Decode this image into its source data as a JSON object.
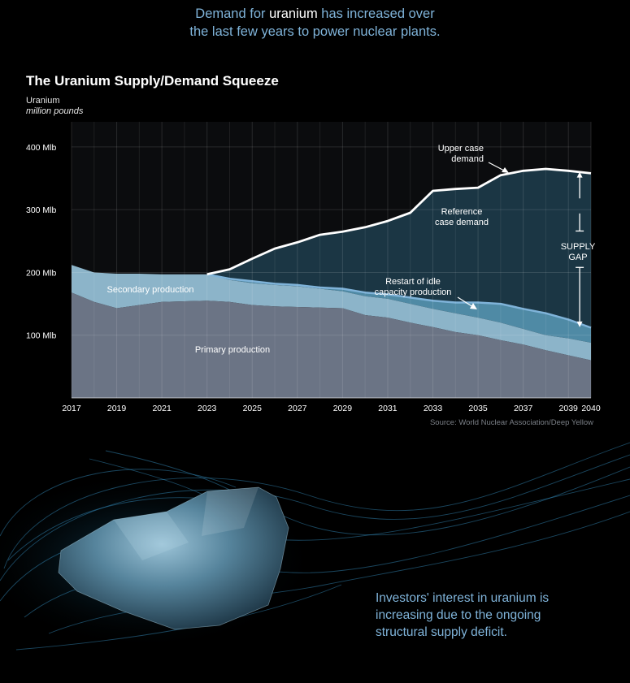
{
  "headline": {
    "part1": "Demand for ",
    "highlight": "uranium",
    "part2": " has increased over",
    "line2": "the last few years to power nuclear plants."
  },
  "colors": {
    "primary": "#6b7485",
    "secondary": "#8cb4c9",
    "restart": "#4f8aa5",
    "gap_fill": "#1f3e4e",
    "upper_line": "#ffffff",
    "reference_line": "#7fb3d9",
    "accent_text": "#7fb3d9"
  },
  "chart_data": {
    "type": "area",
    "title": "The Uranium Supply/Demand Squeeze",
    "ylabel": "Uranium",
    "yunit": "million pounds",
    "source": "Source: World Nuclear Association/Deep Yellow",
    "xlim": [
      2017,
      2040
    ],
    "ylim": [
      0,
      440
    ],
    "grid": true,
    "x_ticks": [
      "2017",
      "2019",
      "2021",
      "2023",
      "2025",
      "2027",
      "2029",
      "2031",
      "2033",
      "2035",
      "2037",
      "2039",
      "2040"
    ],
    "y_ticks": [
      {
        "value": 100,
        "label": "100 Mlb"
      },
      {
        "value": 200,
        "label": "200 Mlb"
      },
      {
        "value": 300,
        "label": "300 Mlb"
      },
      {
        "value": 400,
        "label": "400 Mlb"
      }
    ],
    "series": [
      {
        "key": "primary",
        "name": "Primary production",
        "type": "area",
        "x": [
          2017,
          2018,
          2019,
          2020,
          2021,
          2022,
          2023,
          2024,
          2025,
          2026,
          2027,
          2028,
          2029,
          2030,
          2031,
          2032,
          2033,
          2034,
          2035,
          2036,
          2037,
          2038,
          2039,
          2040
        ],
        "y": [
          168,
          153,
          143,
          148,
          153,
          154,
          155,
          153,
          148,
          146,
          145,
          144,
          143,
          132,
          128,
          120,
          113,
          105,
          100,
          92,
          85,
          76,
          68,
          60
        ]
      },
      {
        "key": "secondary",
        "name": "Secondary production",
        "type": "area",
        "x": [
          2017,
          2018,
          2019,
          2020,
          2021,
          2022,
          2023,
          2024,
          2025,
          2026,
          2027,
          2028,
          2029,
          2030,
          2031,
          2032,
          2033,
          2034,
          2035,
          2036,
          2037,
          2038,
          2039,
          2040
        ],
        "y": [
          212,
          200,
          198,
          198,
          197,
          197,
          197,
          188,
          183,
          180,
          178,
          174,
          170,
          162,
          158,
          150,
          142,
          135,
          128,
          120,
          110,
          100,
          95,
          88
        ]
      },
      {
        "key": "restart",
        "name": "Restart of idle capacity production",
        "type": "area",
        "x": [
          2023,
          2024,
          2025,
          2026,
          2027,
          2028,
          2029,
          2030,
          2031,
          2032,
          2033,
          2034,
          2035,
          2036,
          2037,
          2038,
          2039,
          2040
        ],
        "y": [
          197,
          190,
          186,
          182,
          180,
          176,
          174,
          168,
          165,
          160,
          155,
          152,
          152,
          150,
          142,
          135,
          125,
          112
        ]
      },
      {
        "key": "reference",
        "name": "Reference case demand",
        "type": "line",
        "x": [
          2023,
          2024,
          2025,
          2026,
          2027,
          2028,
          2029,
          2030,
          2031,
          2032,
          2033,
          2034,
          2035,
          2036,
          2037,
          2038,
          2039,
          2040
        ],
        "y": [
          197,
          202,
          205,
          210,
          215,
          222,
          225,
          230,
          233,
          240,
          246,
          252,
          255,
          260,
          270,
          270,
          268,
          265
        ]
      },
      {
        "key": "upper",
        "name": "Upper case demand",
        "type": "line",
        "x": [
          2023,
          2024,
          2025,
          2026,
          2027,
          2028,
          2029,
          2030,
          2031,
          2032,
          2033,
          2034,
          2035,
          2036,
          2037,
          2038,
          2039,
          2040
        ],
        "y": [
          197,
          205,
          222,
          238,
          248,
          260,
          265,
          272,
          282,
          295,
          330,
          333,
          335,
          355,
          362,
          365,
          362,
          358
        ]
      }
    ],
    "annotations": [
      {
        "key": "upper",
        "lines": [
          "Upper case",
          "demand"
        ]
      },
      {
        "key": "reference",
        "lines": [
          "Reference",
          "case demand"
        ]
      },
      {
        "key": "restart",
        "lines": [
          "Restart of idle",
          "capacity production"
        ]
      },
      {
        "key": "secondary",
        "lines": [
          "Secondary production"
        ]
      },
      {
        "key": "primary",
        "lines": [
          "Primary production"
        ]
      },
      {
        "key": "gap",
        "lines": [
          "SUPPLY",
          "GAP"
        ]
      }
    ]
  },
  "bottom_text": [
    "Investors' interest in uranium is",
    "increasing due to the ongoing",
    "structural supply deficit."
  ]
}
